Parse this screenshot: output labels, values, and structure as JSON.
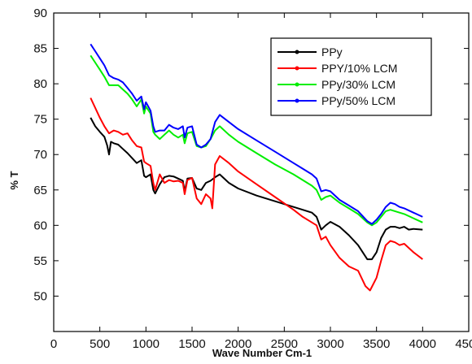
{
  "chart_data": {
    "type": "line",
    "title": "",
    "xlabel": "Wave Number Cm-1",
    "ylabel": "% T",
    "xlim": [
      0,
      4500
    ],
    "ylim": [
      45,
      90
    ],
    "xticks": [
      0,
      500,
      1000,
      1500,
      2000,
      2500,
      3000,
      3500,
      4000,
      4500
    ],
    "yticks": [
      50,
      55,
      60,
      65,
      70,
      75,
      80,
      85,
      90
    ],
    "grid": false,
    "legend_position": "top-right",
    "series": [
      {
        "name": "PPy",
        "color": "#000000",
        "points": [
          [
            400,
            75.2
          ],
          [
            450,
            74.0
          ],
          [
            500,
            73.2
          ],
          [
            550,
            72.5
          ],
          [
            580,
            71.3
          ],
          [
            600,
            70.0
          ],
          [
            620,
            71.8
          ],
          [
            650,
            71.6
          ],
          [
            700,
            71.4
          ],
          [
            750,
            70.8
          ],
          [
            800,
            70.2
          ],
          [
            850,
            69.5
          ],
          [
            900,
            68.8
          ],
          [
            950,
            69.2
          ],
          [
            980,
            67.0
          ],
          [
            1000,
            66.8
          ],
          [
            1050,
            67.2
          ],
          [
            1080,
            65.0
          ],
          [
            1100,
            64.5
          ],
          [
            1150,
            65.8
          ],
          [
            1200,
            66.8
          ],
          [
            1250,
            67.0
          ],
          [
            1300,
            66.9
          ],
          [
            1350,
            66.6
          ],
          [
            1400,
            66.3
          ],
          [
            1420,
            64.8
          ],
          [
            1450,
            66.6
          ],
          [
            1500,
            66.7
          ],
          [
            1550,
            65.2
          ],
          [
            1600,
            65.0
          ],
          [
            1650,
            66.0
          ],
          [
            1700,
            66.3
          ],
          [
            1750,
            66.8
          ],
          [
            1800,
            67.2
          ],
          [
            1900,
            66.0
          ],
          [
            2000,
            65.2
          ],
          [
            2200,
            64.2
          ],
          [
            2400,
            63.4
          ],
          [
            2600,
            62.6
          ],
          [
            2700,
            62.2
          ],
          [
            2800,
            61.8
          ],
          [
            2850,
            61.2
          ],
          [
            2900,
            59.4
          ],
          [
            2950,
            60.0
          ],
          [
            3000,
            60.5
          ],
          [
            3100,
            59.8
          ],
          [
            3200,
            58.6
          ],
          [
            3300,
            57.2
          ],
          [
            3400,
            55.2
          ],
          [
            3450,
            55.2
          ],
          [
            3500,
            56.2
          ],
          [
            3550,
            58.2
          ],
          [
            3600,
            59.4
          ],
          [
            3650,
            59.8
          ],
          [
            3700,
            59.8
          ],
          [
            3750,
            59.6
          ],
          [
            3800,
            59.8
          ],
          [
            3850,
            59.4
          ],
          [
            3900,
            59.5
          ],
          [
            4000,
            59.4
          ]
        ]
      },
      {
        "name": "PPY/10% LCM",
        "color": "#ff0000",
        "points": [
          [
            400,
            78.0
          ],
          [
            450,
            76.6
          ],
          [
            500,
            75.2
          ],
          [
            550,
            74.0
          ],
          [
            600,
            73.0
          ],
          [
            650,
            73.4
          ],
          [
            700,
            73.2
          ],
          [
            750,
            72.8
          ],
          [
            800,
            73.0
          ],
          [
            850,
            72.0
          ],
          [
            900,
            71.2
          ],
          [
            950,
            71.0
          ],
          [
            980,
            69.0
          ],
          [
            1000,
            68.8
          ],
          [
            1050,
            68.4
          ],
          [
            1080,
            66.0
          ],
          [
            1100,
            65.0
          ],
          [
            1150,
            67.2
          ],
          [
            1200,
            66.0
          ],
          [
            1250,
            66.4
          ],
          [
            1300,
            66.2
          ],
          [
            1350,
            66.3
          ],
          [
            1400,
            66.0
          ],
          [
            1420,
            64.4
          ],
          [
            1450,
            66.4
          ],
          [
            1500,
            66.7
          ],
          [
            1550,
            63.8
          ],
          [
            1600,
            63.0
          ],
          [
            1650,
            64.4
          ],
          [
            1700,
            63.8
          ],
          [
            1720,
            62.4
          ],
          [
            1750,
            68.6
          ],
          [
            1800,
            69.8
          ],
          [
            1900,
            68.8
          ],
          [
            2000,
            67.6
          ],
          [
            2200,
            65.8
          ],
          [
            2400,
            64.0
          ],
          [
            2600,
            62.2
          ],
          [
            2700,
            61.2
          ],
          [
            2800,
            60.4
          ],
          [
            2850,
            60.0
          ],
          [
            2900,
            58.0
          ],
          [
            2950,
            58.4
          ],
          [
            3000,
            57.2
          ],
          [
            3100,
            55.4
          ],
          [
            3200,
            54.2
          ],
          [
            3300,
            53.6
          ],
          [
            3380,
            51.4
          ],
          [
            3430,
            50.8
          ],
          [
            3500,
            52.6
          ],
          [
            3550,
            55.0
          ],
          [
            3600,
            57.2
          ],
          [
            3650,
            57.8
          ],
          [
            3700,
            57.6
          ],
          [
            3750,
            57.2
          ],
          [
            3800,
            57.4
          ],
          [
            3900,
            56.2
          ],
          [
            4000,
            55.2
          ]
        ]
      },
      {
        "name": "PPy/30% LCM",
        "color": "#00ee00",
        "points": [
          [
            400,
            84.0
          ],
          [
            450,
            83.0
          ],
          [
            500,
            82.0
          ],
          [
            550,
            81.0
          ],
          [
            600,
            79.8
          ],
          [
            650,
            79.8
          ],
          [
            700,
            79.8
          ],
          [
            750,
            79.2
          ],
          [
            800,
            78.6
          ],
          [
            850,
            77.8
          ],
          [
            900,
            76.8
          ],
          [
            950,
            77.8
          ],
          [
            980,
            75.8
          ],
          [
            1000,
            76.8
          ],
          [
            1050,
            75.8
          ],
          [
            1080,
            73.2
          ],
          [
            1100,
            72.8
          ],
          [
            1150,
            72.2
          ],
          [
            1200,
            72.8
          ],
          [
            1250,
            73.4
          ],
          [
            1300,
            72.8
          ],
          [
            1350,
            72.4
          ],
          [
            1400,
            72.8
          ],
          [
            1420,
            71.6
          ],
          [
            1450,
            73.0
          ],
          [
            1500,
            73.2
          ],
          [
            1550,
            71.2
          ],
          [
            1600,
            71.0
          ],
          [
            1650,
            71.2
          ],
          [
            1700,
            72.2
          ],
          [
            1750,
            73.4
          ],
          [
            1800,
            74.0
          ],
          [
            1900,
            72.8
          ],
          [
            2000,
            71.8
          ],
          [
            2200,
            70.2
          ],
          [
            2400,
            68.6
          ],
          [
            2600,
            67.2
          ],
          [
            2700,
            66.4
          ],
          [
            2800,
            65.6
          ],
          [
            2850,
            65.0
          ],
          [
            2900,
            63.6
          ],
          [
            2950,
            64.0
          ],
          [
            3000,
            64.2
          ],
          [
            3100,
            63.2
          ],
          [
            3200,
            62.4
          ],
          [
            3300,
            61.6
          ],
          [
            3400,
            60.4
          ],
          [
            3450,
            60.0
          ],
          [
            3500,
            60.4
          ],
          [
            3550,
            61.2
          ],
          [
            3600,
            62.0
          ],
          [
            3650,
            62.2
          ],
          [
            3700,
            62.0
          ],
          [
            3750,
            61.8
          ],
          [
            3800,
            61.6
          ],
          [
            3900,
            61.0
          ],
          [
            4000,
            60.4
          ]
        ]
      },
      {
        "name": "PPy/50% LCM",
        "color": "#0000ff",
        "points": [
          [
            400,
            85.6
          ],
          [
            450,
            84.6
          ],
          [
            500,
            83.6
          ],
          [
            550,
            82.6
          ],
          [
            600,
            81.2
          ],
          [
            650,
            80.8
          ],
          [
            700,
            80.6
          ],
          [
            750,
            80.2
          ],
          [
            800,
            79.4
          ],
          [
            850,
            78.6
          ],
          [
            900,
            77.6
          ],
          [
            950,
            78.2
          ],
          [
            980,
            76.4
          ],
          [
            1000,
            77.4
          ],
          [
            1050,
            76.2
          ],
          [
            1080,
            74.0
          ],
          [
            1100,
            73.2
          ],
          [
            1150,
            73.4
          ],
          [
            1200,
            73.4
          ],
          [
            1250,
            74.2
          ],
          [
            1300,
            73.8
          ],
          [
            1350,
            73.6
          ],
          [
            1400,
            74.0
          ],
          [
            1420,
            72.4
          ],
          [
            1450,
            73.8
          ],
          [
            1500,
            74.0
          ],
          [
            1550,
            71.4
          ],
          [
            1600,
            71.0
          ],
          [
            1650,
            71.4
          ],
          [
            1700,
            72.2
          ],
          [
            1750,
            74.6
          ],
          [
            1800,
            75.6
          ],
          [
            1900,
            74.6
          ],
          [
            2000,
            73.6
          ],
          [
            2200,
            72.0
          ],
          [
            2400,
            70.4
          ],
          [
            2600,
            68.8
          ],
          [
            2700,
            68.0
          ],
          [
            2800,
            67.2
          ],
          [
            2850,
            66.6
          ],
          [
            2900,
            64.8
          ],
          [
            2950,
            65.0
          ],
          [
            3000,
            64.8
          ],
          [
            3100,
            63.6
          ],
          [
            3200,
            62.8
          ],
          [
            3300,
            62.0
          ],
          [
            3400,
            60.6
          ],
          [
            3450,
            60.2
          ],
          [
            3500,
            60.8
          ],
          [
            3550,
            61.6
          ],
          [
            3600,
            62.6
          ],
          [
            3650,
            63.2
          ],
          [
            3700,
            63.0
          ],
          [
            3750,
            62.6
          ],
          [
            3800,
            62.4
          ],
          [
            3900,
            61.8
          ],
          [
            4000,
            61.2
          ]
        ]
      }
    ]
  }
}
